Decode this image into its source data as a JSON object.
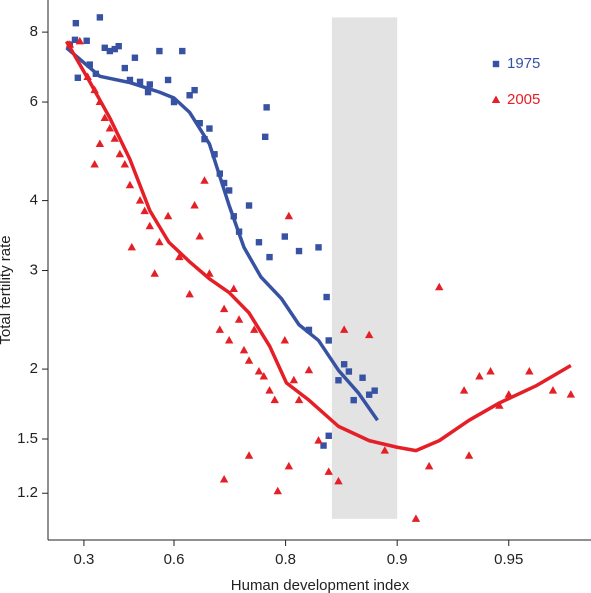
{
  "chart_data": {
    "type": "scatter",
    "xlabel": "Human development index",
    "ylabel": "Total fertility rate",
    "xscale": "log-complement",
    "yscale": "log",
    "xlim": [
      0.125,
      0.97
    ],
    "ylim": [
      0.99,
      9.13
    ],
    "xticks": [
      0.3,
      0.6,
      0.8,
      0.9,
      0.95
    ],
    "yticks": [
      1.2,
      1.5,
      2,
      3,
      4,
      6,
      8
    ],
    "legend": "upper right",
    "shaded_region": {
      "x": [
        0.85,
        0.9
      ],
      "y": [
        1.08,
        8.5
      ],
      "color": "#e3e3e3"
    },
    "series": [
      {
        "name": "1975",
        "color": "#3752a3",
        "marker": "square",
        "x": [
          0.236,
          0.26,
          0.264,
          0.273,
          0.312,
          0.325,
          0.35,
          0.366,
          0.385,
          0.404,
          0.422,
          0.436,
          0.457,
          0.474,
          0.49,
          0.506,
          0.53,
          0.535,
          0.562,
          0.585,
          0.6,
          0.62,
          0.637,
          0.648,
          0.659,
          0.669,
          0.679,
          0.689,
          0.699,
          0.707,
          0.716,
          0.724,
          0.733,
          0.749,
          0.764,
          0.775,
          0.773,
          0.779,
          0.799,
          0.816,
          0.827,
          0.837,
          0.845,
          0.847,
          0.856,
          0.861,
          0.865,
          0.869,
          0.876,
          0.881,
          0.885,
          0.842,
          0.847
        ],
        "y": [
          7.6,
          7.75,
          8.3,
          6.63,
          7.72,
          7.0,
          6.74,
          8.5,
          7.5,
          7.4,
          7.46,
          7.55,
          6.9,
          6.57,
          7.2,
          6.52,
          6.25,
          6.45,
          7.4,
          6.57,
          6.0,
          7.4,
          6.17,
          6.3,
          5.5,
          5.15,
          5.38,
          4.84,
          4.47,
          4.3,
          4.17,
          3.75,
          3.52,
          3.92,
          3.37,
          5.87,
          5.2,
          3.17,
          3.45,
          3.25,
          2.35,
          3.3,
          2.69,
          2.25,
          1.91,
          2.04,
          1.98,
          1.76,
          1.93,
          1.8,
          1.83,
          1.46,
          1.52
        ],
        "trend": {
          "x": [
            0.22,
            0.366,
            0.474,
            0.562,
            0.6,
            0.637,
            0.679,
            0.716,
            0.741,
            0.767,
            0.795,
            0.816,
            0.837,
            0.856,
            0.873,
            0.887
          ],
          "y": [
            7.5,
            6.67,
            6.5,
            6.25,
            6.1,
            5.75,
            5.05,
            3.92,
            3.3,
            2.92,
            2.67,
            2.4,
            2.25,
            1.99,
            1.81,
            1.62
          ]
        }
      },
      {
        "name": "2005",
        "color": "#e41f26",
        "marker": "triangle",
        "x": [
          0.236,
          0.282,
          0.316,
          0.345,
          0.366,
          0.385,
          0.404,
          0.422,
          0.44,
          0.366,
          0.345,
          0.457,
          0.474,
          0.506,
          0.52,
          0.48,
          0.535,
          0.549,
          0.562,
          0.585,
          0.613,
          0.637,
          0.648,
          0.659,
          0.669,
          0.679,
          0.699,
          0.707,
          0.716,
          0.724,
          0.733,
          0.741,
          0.749,
          0.757,
          0.764,
          0.771,
          0.779,
          0.786,
          0.799,
          0.804,
          0.81,
          0.816,
          0.827,
          0.837,
          0.847,
          0.856,
          0.861,
          0.881,
          0.749,
          0.804,
          0.79,
          0.707,
          0.892,
          0.911,
          0.918,
          0.923,
          0.934,
          0.936,
          0.94,
          0.944,
          0.947,
          0.95,
          0.956,
          0.962,
          0.966
        ],
        "y": [
          7.6,
          7.7,
          6.65,
          6.3,
          6.0,
          5.62,
          5.38,
          5.16,
          4.84,
          5.05,
          4.64,
          4.64,
          4.26,
          4.0,
          3.83,
          3.3,
          3.6,
          2.96,
          3.37,
          3.75,
          3.17,
          2.72,
          3.92,
          3.45,
          4.34,
          2.96,
          2.35,
          2.56,
          2.25,
          2.78,
          2.45,
          2.16,
          2.07,
          2.35,
          1.98,
          1.94,
          1.83,
          1.76,
          2.25,
          3.75,
          1.91,
          1.76,
          1.99,
          1.49,
          1.31,
          1.26,
          2.35,
          2.3,
          1.4,
          1.34,
          1.21,
          1.27,
          1.43,
          1.08,
          1.34,
          2.8,
          1.83,
          1.4,
          1.94,
          1.98,
          1.72,
          1.8,
          1.98,
          1.83,
          1.8
        ],
        "trend": {
          "x": [
            0.22,
            0.325,
            0.404,
            0.474,
            0.535,
            0.587,
            0.637,
            0.679,
            0.716,
            0.749,
            0.779,
            0.801,
            0.827,
            0.856,
            0.881,
            0.9,
            0.911,
            0.923,
            0.936,
            0.947,
            0.958,
            0.966
          ],
          "y": [
            7.7,
            6.52,
            5.62,
            4.74,
            3.84,
            3.37,
            3.11,
            2.9,
            2.74,
            2.52,
            2.2,
            1.89,
            1.76,
            1.58,
            1.49,
            1.45,
            1.43,
            1.49,
            1.62,
            1.74,
            1.87,
            2.03
          ]
        }
      }
    ]
  }
}
